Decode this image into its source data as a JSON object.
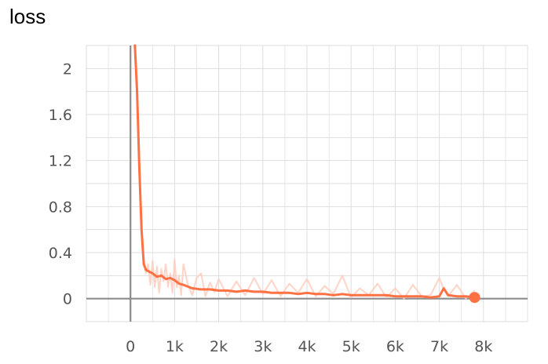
{
  "chart_data": {
    "type": "line",
    "title": "loss",
    "xlim": [
      -1000,
      9000
    ],
    "ylim": [
      -0.2,
      2.2
    ],
    "x_ticks": [
      0,
      1000,
      2000,
      3000,
      4000,
      5000,
      6000,
      7000,
      8000
    ],
    "x_tick_labels": [
      "0",
      "1k",
      "2k",
      "3k",
      "4k",
      "5k",
      "6k",
      "7k",
      "8k"
    ],
    "y_ticks": [
      0,
      0.4,
      0.8,
      1.2,
      1.6,
      2
    ],
    "y_tick_labels": [
      "0",
      "0.4",
      "0.8",
      "1.2",
      "1.6",
      "2"
    ],
    "grid": true,
    "colors": {
      "smoothed": "#ff7043",
      "raw": "#ffccbc",
      "axis": "#8c8c8c",
      "grid": "#dddddd"
    },
    "series": [
      {
        "style": "raw",
        "x": [
          100,
          200,
          250,
          300,
          350,
          400,
          450,
          500,
          550,
          600,
          650,
          700,
          750,
          800,
          850,
          900,
          950,
          1000,
          1050,
          1100,
          1150,
          1200,
          1300,
          1400,
          1500,
          1600,
          1700,
          1800,
          1900,
          2000,
          2200,
          2400,
          2600,
          2800,
          3000,
          3200,
          3400,
          3600,
          3800,
          4000,
          4200,
          4400,
          4600,
          4800,
          5000,
          5200,
          5400,
          5600,
          5800,
          6000,
          6200,
          6400,
          6600,
          6800,
          7000,
          7100,
          7200,
          7400,
          7600,
          7800
        ],
        "y": [
          2.2,
          1.2,
          0.55,
          0.35,
          0.22,
          0.3,
          0.12,
          0.33,
          0.1,
          0.28,
          0.05,
          0.26,
          0.15,
          0.3,
          0.1,
          0.22,
          0.05,
          0.34,
          0.1,
          0.2,
          0.03,
          0.3,
          0.12,
          0.03,
          0.18,
          0.22,
          0.02,
          0.14,
          0.06,
          0.17,
          0.02,
          0.15,
          0.03,
          0.18,
          0.04,
          0.16,
          0.02,
          0.13,
          0.05,
          0.17,
          0.02,
          0.11,
          0.04,
          0.2,
          0.01,
          0.09,
          0.03,
          0.13,
          0.01,
          0.09,
          0.0,
          0.12,
          0.02,
          0.03,
          0.18,
          0.08,
          0.02,
          0.12,
          0.0,
          0.07
        ]
      },
      {
        "style": "smoothed",
        "x": [
          100,
          150,
          200,
          250,
          300,
          350,
          400,
          500,
          600,
          700,
          800,
          900,
          1000,
          1100,
          1200,
          1400,
          1600,
          1800,
          2000,
          2200,
          2400,
          2600,
          2800,
          3000,
          3200,
          3400,
          3600,
          3800,
          4000,
          4200,
          4400,
          4600,
          4800,
          5000,
          5200,
          5400,
          5600,
          5800,
          6000,
          6200,
          6400,
          6600,
          6800,
          7000,
          7100,
          7200,
          7400,
          7600,
          7800
        ],
        "y": [
          2.2,
          1.8,
          1.15,
          0.6,
          0.3,
          0.25,
          0.24,
          0.22,
          0.19,
          0.2,
          0.17,
          0.18,
          0.16,
          0.13,
          0.12,
          0.09,
          0.08,
          0.08,
          0.07,
          0.07,
          0.06,
          0.07,
          0.06,
          0.06,
          0.05,
          0.05,
          0.05,
          0.04,
          0.05,
          0.04,
          0.04,
          0.03,
          0.04,
          0.03,
          0.03,
          0.03,
          0.03,
          0.03,
          0.02,
          0.02,
          0.02,
          0.02,
          0.01,
          0.02,
          0.09,
          0.03,
          0.02,
          0.02,
          0.01
        ]
      }
    ]
  }
}
